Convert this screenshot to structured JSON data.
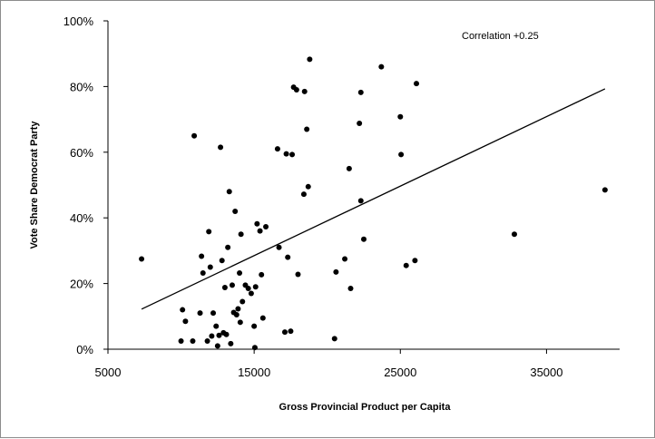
{
  "chart_data": {
    "type": "scatter",
    "title": "",
    "xlabel": "Gross Provincial Product per Capita",
    "ylabel": "Vote Share Democrat Party",
    "annotation": "Correlation +0.25",
    "xlim": [
      5000,
      40000
    ],
    "ylim": [
      0,
      100
    ],
    "x_ticks": [
      5000,
      15000,
      25000,
      35000
    ],
    "x_tick_labels": [
      "5000",
      "15000",
      "25000",
      "35000"
    ],
    "y_ticks": [
      0,
      20,
      40,
      60,
      80,
      100
    ],
    "y_tick_labels": [
      "0%",
      "20%",
      "40%",
      "60%",
      "80%",
      "100%"
    ],
    "grid": false,
    "legend": "none",
    "colors": {
      "points": "#000000",
      "trendline": "#000000",
      "frame": "#8c8c8c"
    },
    "trendline": {
      "x": [
        7300,
        39000
      ],
      "y": [
        12.2,
        79.3
      ]
    },
    "points": [
      {
        "x": 7300,
        "y": 27.5
      },
      {
        "x": 10000,
        "y": 2.5
      },
      {
        "x": 10100,
        "y": 12
      },
      {
        "x": 10300,
        "y": 8.5
      },
      {
        "x": 10800,
        "y": 2.5
      },
      {
        "x": 10900,
        "y": 65
      },
      {
        "x": 11300,
        "y": 11
      },
      {
        "x": 11400,
        "y": 28.3
      },
      {
        "x": 11500,
        "y": 23.2
      },
      {
        "x": 11800,
        "y": 2.5
      },
      {
        "x": 11900,
        "y": 35.8
      },
      {
        "x": 12000,
        "y": 25
      },
      {
        "x": 12100,
        "y": 4
      },
      {
        "x": 12200,
        "y": 11
      },
      {
        "x": 12400,
        "y": 7
      },
      {
        "x": 12500,
        "y": 1
      },
      {
        "x": 12600,
        "y": 4.2
      },
      {
        "x": 12700,
        "y": 61.5
      },
      {
        "x": 12800,
        "y": 27
      },
      {
        "x": 12900,
        "y": 5
      },
      {
        "x": 13000,
        "y": 18.8
      },
      {
        "x": 13100,
        "y": 4.5
      },
      {
        "x": 13200,
        "y": 31
      },
      {
        "x": 13300,
        "y": 48
      },
      {
        "x": 13400,
        "y": 1.7
      },
      {
        "x": 13500,
        "y": 19.5
      },
      {
        "x": 13600,
        "y": 11.2
      },
      {
        "x": 13700,
        "y": 42
      },
      {
        "x": 13800,
        "y": 10.5
      },
      {
        "x": 13900,
        "y": 12.3
      },
      {
        "x": 14000,
        "y": 23.2
      },
      {
        "x": 14050,
        "y": 8.2
      },
      {
        "x": 14100,
        "y": 35
      },
      {
        "x": 14200,
        "y": 14.5
      },
      {
        "x": 14400,
        "y": 19.5
      },
      {
        "x": 14600,
        "y": 18.5
      },
      {
        "x": 14800,
        "y": 17
      },
      {
        "x": 15000,
        "y": 7
      },
      {
        "x": 15050,
        "y": 0.5
      },
      {
        "x": 15100,
        "y": 19
      },
      {
        "x": 15200,
        "y": 38.2
      },
      {
        "x": 15400,
        "y": 36
      },
      {
        "x": 15500,
        "y": 22.7
      },
      {
        "x": 15600,
        "y": 9.5
      },
      {
        "x": 15800,
        "y": 37.3
      },
      {
        "x": 16600,
        "y": 61
      },
      {
        "x": 16700,
        "y": 31
      },
      {
        "x": 17100,
        "y": 5.2
      },
      {
        "x": 17200,
        "y": 59.5
      },
      {
        "x": 17300,
        "y": 28
      },
      {
        "x": 17500,
        "y": 5.5
      },
      {
        "x": 17600,
        "y": 59.3
      },
      {
        "x": 17700,
        "y": 79.8
      },
      {
        "x": 17900,
        "y": 79
      },
      {
        "x": 18000,
        "y": 22.8
      },
      {
        "x": 18400,
        "y": 47.2
      },
      {
        "x": 18450,
        "y": 78.5
      },
      {
        "x": 18600,
        "y": 67
      },
      {
        "x": 18700,
        "y": 49.5
      },
      {
        "x": 18800,
        "y": 88.3
      },
      {
        "x": 20500,
        "y": 3.2
      },
      {
        "x": 20600,
        "y": 23.5
      },
      {
        "x": 21200,
        "y": 27.5
      },
      {
        "x": 21500,
        "y": 55
      },
      {
        "x": 21600,
        "y": 18.5
      },
      {
        "x": 22200,
        "y": 68.8
      },
      {
        "x": 22300,
        "y": 45.2
      },
      {
        "x": 22300,
        "y": 78.2
      },
      {
        "x": 22500,
        "y": 33.5
      },
      {
        "x": 23700,
        "y": 86
      },
      {
        "x": 25000,
        "y": 70.8
      },
      {
        "x": 25050,
        "y": 59.3
      },
      {
        "x": 25400,
        "y": 25.5
      },
      {
        "x": 26000,
        "y": 27
      },
      {
        "x": 26100,
        "y": 80.9
      },
      {
        "x": 32800,
        "y": 35
      },
      {
        "x": 39000,
        "y": 48.5
      }
    ]
  }
}
